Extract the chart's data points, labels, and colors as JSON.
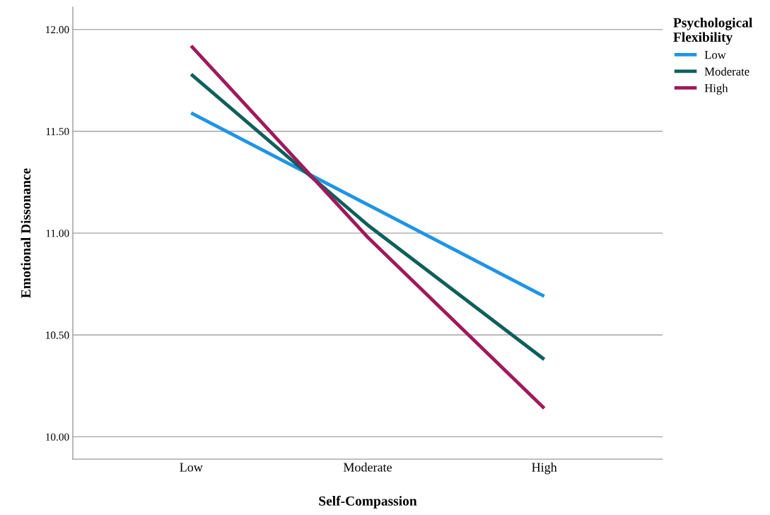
{
  "chart_data": {
    "type": "line",
    "xlabel": "Self-Compassion",
    "ylabel": "Emotional Dissonance",
    "legend_title": "Psychological\nFlexibility",
    "categories": [
      "Low",
      "Moderate",
      "High"
    ],
    "series": [
      {
        "name": "Low",
        "color": "#1f94e6",
        "values": [
          11.59,
          11.14,
          10.69
        ]
      },
      {
        "name": "Moderate",
        "color": "#0e5f5b",
        "values": [
          11.78,
          11.04,
          10.38
        ]
      },
      {
        "name": "High",
        "color": "#a0195a",
        "values": [
          11.92,
          10.98,
          10.14
        ]
      }
    ],
    "ylim": [
      9.89,
      12.11
    ],
    "yticks": [
      {
        "value": 10,
        "label": "10.00"
      },
      {
        "value": 10.5,
        "label": "10.50"
      },
      {
        "value": 11,
        "label": "11.00"
      },
      {
        "value": 11.5,
        "label": "11.50"
      },
      {
        "value": 12,
        "label": "12.00"
      }
    ],
    "grid": "y",
    "legend": "top right",
    "marker": "none",
    "line_style": "solid"
  }
}
